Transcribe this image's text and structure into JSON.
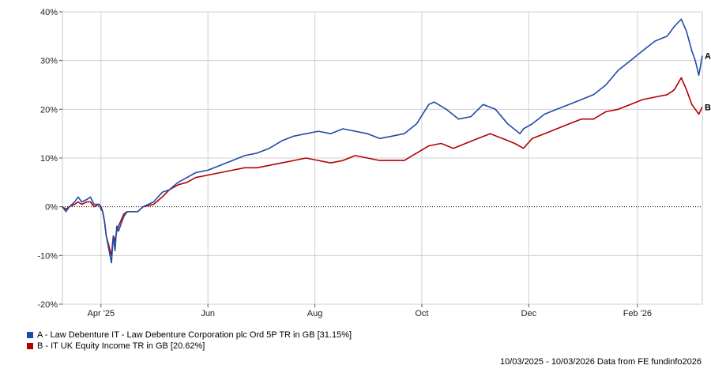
{
  "chart_data": {
    "type": "line",
    "title": "",
    "xlabel": "",
    "ylabel": "",
    "ylim": [
      -20,
      40
    ],
    "yticks": [
      40,
      30,
      20,
      10,
      0,
      -10,
      -20
    ],
    "ytick_labels": [
      "40%",
      "30%",
      "20%",
      "10%",
      "0%",
      "-10%",
      "-20%"
    ],
    "x_start": "2025-03-10",
    "x_end": "2026-03-10",
    "xticks": [
      {
        "date": "2025-04-01",
        "label": "Apr '25"
      },
      {
        "date": "2025-06-01",
        "label": "Jun"
      },
      {
        "date": "2025-08-01",
        "label": "Aug"
      },
      {
        "date": "2025-10-01",
        "label": "Oct"
      },
      {
        "date": "2025-12-01",
        "label": "Dec"
      },
      {
        "date": "2026-02-01",
        "label": "Feb '26"
      }
    ],
    "grid": true,
    "zero_line": "dotted",
    "series": [
      {
        "name": "A",
        "legend": "A - Law Debenture IT - Law Debenture Corporation plc Ord 5P TR in GB [31.15%]",
        "color": "#1f4aa8",
        "points": [
          [
            "2025-03-10",
            0
          ],
          [
            "2025-03-12",
            -1
          ],
          [
            "2025-03-14",
            0
          ],
          [
            "2025-03-17",
            1
          ],
          [
            "2025-03-19",
            2
          ],
          [
            "2025-03-21",
            1
          ],
          [
            "2025-03-24",
            1.5
          ],
          [
            "2025-03-26",
            2
          ],
          [
            "2025-03-28",
            0.5
          ],
          [
            "2025-03-31",
            0.5
          ],
          [
            "2025-04-01",
            -0.5
          ],
          [
            "2025-04-02",
            -1
          ],
          [
            "2025-04-03",
            -3
          ],
          [
            "2025-04-04",
            -6
          ],
          [
            "2025-04-07",
            -11.5
          ],
          [
            "2025-04-08",
            -6
          ],
          [
            "2025-04-09",
            -9
          ],
          [
            "2025-04-10",
            -4
          ],
          [
            "2025-04-11",
            -5
          ],
          [
            "2025-04-14",
            -2
          ],
          [
            "2025-04-16",
            -1
          ],
          [
            "2025-04-22",
            -1
          ],
          [
            "2025-04-25",
            0
          ],
          [
            "2025-05-01",
            1
          ],
          [
            "2025-05-06",
            3
          ],
          [
            "2025-05-10",
            3.5
          ],
          [
            "2025-05-15",
            5
          ],
          [
            "2025-05-20",
            6
          ],
          [
            "2025-05-25",
            7
          ],
          [
            "2025-06-01",
            7.5
          ],
          [
            "2025-06-08",
            8.5
          ],
          [
            "2025-06-15",
            9.5
          ],
          [
            "2025-06-22",
            10.5
          ],
          [
            "2025-06-29",
            11
          ],
          [
            "2025-07-06",
            12
          ],
          [
            "2025-07-13",
            13.5
          ],
          [
            "2025-07-20",
            14.5
          ],
          [
            "2025-07-27",
            15
          ],
          [
            "2025-08-03",
            15.5
          ],
          [
            "2025-08-10",
            15
          ],
          [
            "2025-08-17",
            16
          ],
          [
            "2025-08-24",
            15.5
          ],
          [
            "2025-08-31",
            15
          ],
          [
            "2025-09-07",
            14
          ],
          [
            "2025-09-14",
            14.5
          ],
          [
            "2025-09-21",
            15
          ],
          [
            "2025-09-28",
            17
          ],
          [
            "2025-10-05",
            21
          ],
          [
            "2025-10-08",
            21.5
          ],
          [
            "2025-10-15",
            20
          ],
          [
            "2025-10-22",
            18
          ],
          [
            "2025-10-29",
            18.5
          ],
          [
            "2025-11-05",
            21
          ],
          [
            "2025-11-12",
            20
          ],
          [
            "2025-11-19",
            17
          ],
          [
            "2025-11-26",
            15
          ],
          [
            "2025-11-28",
            16
          ],
          [
            "2025-12-03",
            17
          ],
          [
            "2025-12-10",
            19
          ],
          [
            "2025-12-17",
            20
          ],
          [
            "2025-12-24",
            21
          ],
          [
            "2025-12-31",
            22
          ],
          [
            "2026-01-07",
            23
          ],
          [
            "2026-01-14",
            25
          ],
          [
            "2026-01-21",
            28
          ],
          [
            "2026-01-28",
            30
          ],
          [
            "2026-02-04",
            32
          ],
          [
            "2026-02-11",
            34
          ],
          [
            "2026-02-18",
            35
          ],
          [
            "2026-02-22",
            37
          ],
          [
            "2026-02-26",
            38.5
          ],
          [
            "2026-03-01",
            36
          ],
          [
            "2026-03-04",
            32
          ],
          [
            "2026-03-06",
            30
          ],
          [
            "2026-03-08",
            27
          ],
          [
            "2026-03-10",
            31
          ]
        ]
      },
      {
        "name": "B",
        "legend": "B - IT UK Equity Income TR in GB [20.62%]",
        "color": "#b30000",
        "points": [
          [
            "2025-03-10",
            0
          ],
          [
            "2025-03-12",
            -0.5
          ],
          [
            "2025-03-14",
            0
          ],
          [
            "2025-03-17",
            0.5
          ],
          [
            "2025-03-19",
            1
          ],
          [
            "2025-03-21",
            0.5
          ],
          [
            "2025-03-24",
            1
          ],
          [
            "2025-03-26",
            1
          ],
          [
            "2025-03-28",
            0
          ],
          [
            "2025-03-31",
            0.5
          ],
          [
            "2025-04-01",
            0
          ],
          [
            "2025-04-02",
            -1
          ],
          [
            "2025-04-03",
            -3
          ],
          [
            "2025-04-04",
            -6
          ],
          [
            "2025-04-07",
            -10
          ],
          [
            "2025-04-08",
            -6
          ],
          [
            "2025-04-09",
            -7
          ],
          [
            "2025-04-10",
            -5
          ],
          [
            "2025-04-11",
            -4
          ],
          [
            "2025-04-14",
            -1.5
          ],
          [
            "2025-04-16",
            -1
          ],
          [
            "2025-04-22",
            -1
          ],
          [
            "2025-04-25",
            0
          ],
          [
            "2025-05-01",
            0.5
          ],
          [
            "2025-05-06",
            2
          ],
          [
            "2025-05-10",
            3.5
          ],
          [
            "2025-05-15",
            4.5
          ],
          [
            "2025-05-20",
            5
          ],
          [
            "2025-05-25",
            6
          ],
          [
            "2025-06-01",
            6.5
          ],
          [
            "2025-06-08",
            7
          ],
          [
            "2025-06-15",
            7.5
          ],
          [
            "2025-06-22",
            8
          ],
          [
            "2025-06-29",
            8
          ],
          [
            "2025-07-06",
            8.5
          ],
          [
            "2025-07-13",
            9
          ],
          [
            "2025-07-20",
            9.5
          ],
          [
            "2025-07-27",
            10
          ],
          [
            "2025-08-03",
            9.5
          ],
          [
            "2025-08-10",
            9
          ],
          [
            "2025-08-17",
            9.5
          ],
          [
            "2025-08-24",
            10.5
          ],
          [
            "2025-08-31",
            10
          ],
          [
            "2025-09-07",
            9.5
          ],
          [
            "2025-09-14",
            9.5
          ],
          [
            "2025-09-21",
            9.5
          ],
          [
            "2025-09-28",
            11
          ],
          [
            "2025-10-05",
            12.5
          ],
          [
            "2025-10-12",
            13
          ],
          [
            "2025-10-19",
            12
          ],
          [
            "2025-10-26",
            13
          ],
          [
            "2025-11-02",
            14
          ],
          [
            "2025-11-09",
            15
          ],
          [
            "2025-11-16",
            14
          ],
          [
            "2025-11-23",
            13
          ],
          [
            "2025-11-28",
            12
          ],
          [
            "2025-12-03",
            14
          ],
          [
            "2025-12-10",
            15
          ],
          [
            "2025-12-17",
            16
          ],
          [
            "2025-12-24",
            17
          ],
          [
            "2025-12-31",
            18
          ],
          [
            "2026-01-07",
            18
          ],
          [
            "2026-01-14",
            19.5
          ],
          [
            "2026-01-21",
            20
          ],
          [
            "2026-01-28",
            21
          ],
          [
            "2026-02-04",
            22
          ],
          [
            "2026-02-11",
            22.5
          ],
          [
            "2026-02-18",
            23
          ],
          [
            "2026-02-22",
            24
          ],
          [
            "2026-02-26",
            26.5
          ],
          [
            "2026-03-01",
            24
          ],
          [
            "2026-03-04",
            21
          ],
          [
            "2026-03-06",
            20
          ],
          [
            "2026-03-08",
            19
          ],
          [
            "2026-03-10",
            20.5
          ]
        ]
      }
    ]
  },
  "legend": {
    "a": "A - Law Debenture IT - Law Debenture Corporation plc Ord 5P TR in GB [31.15%]",
    "b": "B - IT UK Equity Income TR in GB [20.62%]"
  },
  "footer": "10/03/2025 - 10/03/2026 Data from FE fundinfo2026",
  "colors": {
    "a": "#1f4aa8",
    "b": "#b30000"
  }
}
